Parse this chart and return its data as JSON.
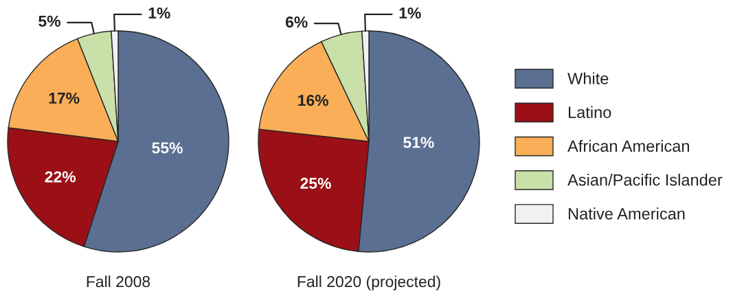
{
  "chart_data": [
    {
      "type": "pie",
      "title": "Fall 2008",
      "categories": [
        "White",
        "Latino",
        "African American",
        "Asian/Pacific Islander",
        "Native American"
      ],
      "values": [
        55,
        22,
        17,
        5,
        1
      ],
      "colors": [
        "#5a6f91",
        "#9a1016",
        "#f9ae57",
        "#c9e0a9",
        "#f0f1f3"
      ],
      "value_labels": [
        "55%",
        "22%",
        "17%",
        "5%",
        "1%"
      ],
      "legend": "right"
    },
    {
      "type": "pie",
      "title": "Fall 2020 (projected)",
      "categories": [
        null,
        null,
        null,
        null,
        null
      ],
      "values": [
        51,
        25,
        16,
        6,
        1
      ],
      "colors": [
        "#5a6f91",
        "#9a1016",
        "#f9ae57",
        "#c9e0a9",
        "#f0f1f3"
      ],
      "value_labels": [
        "51%",
        "25%",
        "16%",
        "6%",
        "1%"
      ]
    }
  ]
}
